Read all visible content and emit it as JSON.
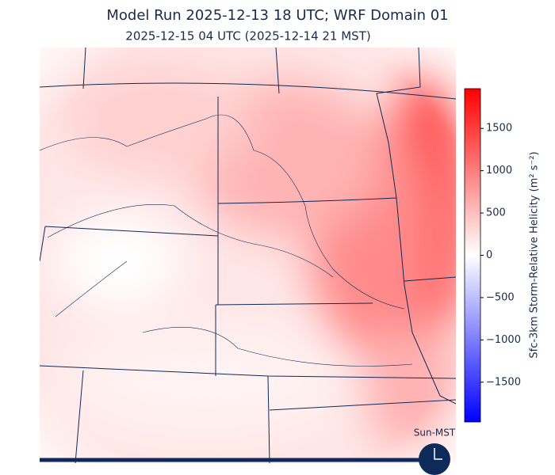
{
  "header": {
    "title": "Model Run 2025-12-13 18 UTC; WRF Domain 01",
    "subtitle": "2025-12-15 04 UTC  (2025-12-14 21 MST)"
  },
  "colorbar": {
    "label": "Sfc-3km Storm-Relative Helicity (m² s⁻²)",
    "clim": [
      -1970,
      1970
    ],
    "ticks": [
      {
        "value": -1500,
        "label": "−1500"
      },
      {
        "value": -1000,
        "label": "−1000"
      },
      {
        "value": -500,
        "label": "−500"
      },
      0,
      500,
      1000,
      1500
    ],
    "colors": [
      "#0000ff",
      "#ffffff",
      "#ff0000"
    ]
  },
  "clock": {
    "label": "Sun-MST"
  }
}
